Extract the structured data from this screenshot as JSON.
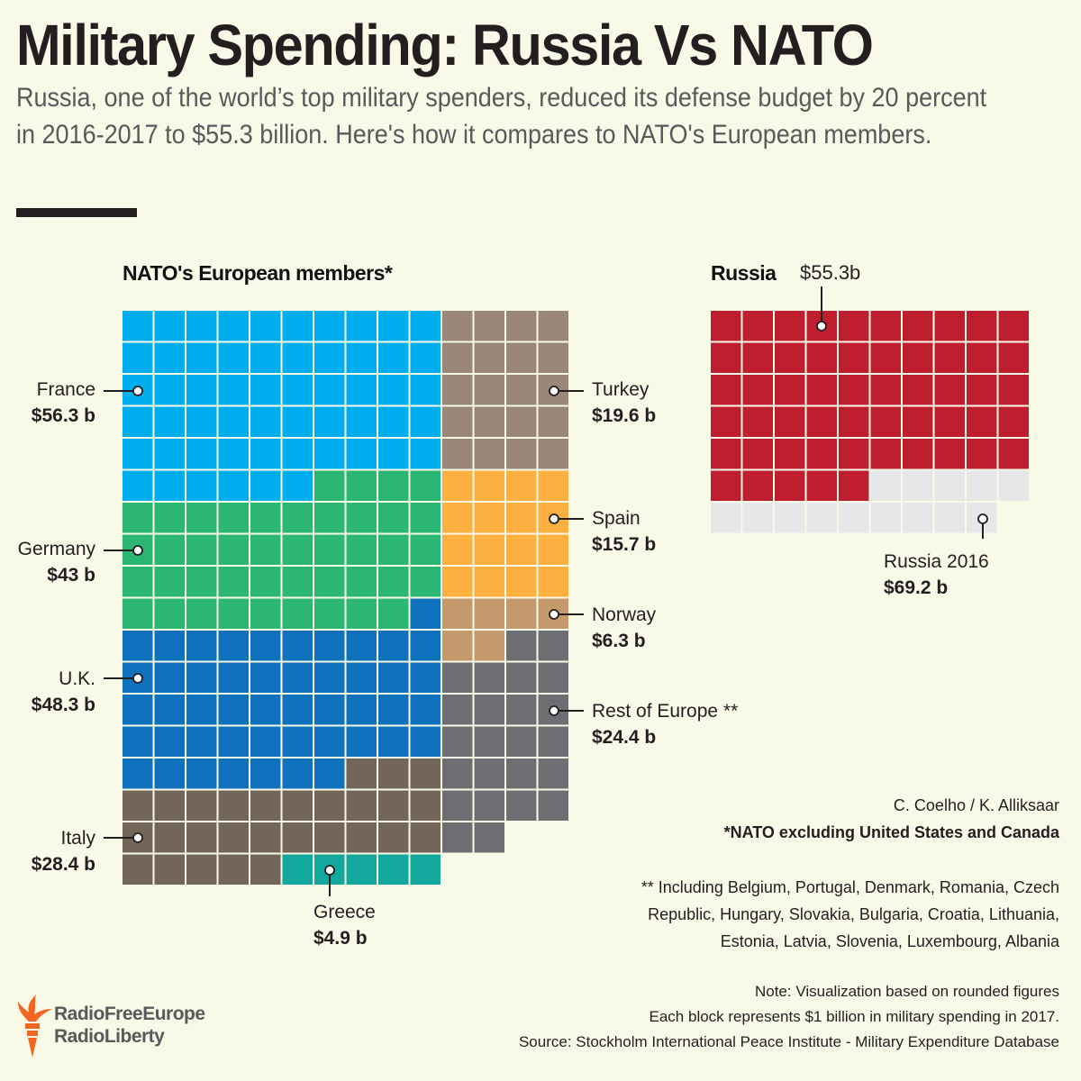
{
  "header": {
    "title": "Military Spending: Russia Vs NATO",
    "subtitle": "Russia, one of the world’s top military spenders, reduced its defense budget by 20 percent in 2016-2017 to $55.3 billion. Here's how it compares to NATO's European members."
  },
  "chart_data": [
    {
      "type": "waffle",
      "title": "NATO's European members*",
      "unit": "Each block represents $1 billion",
      "series": [
        {
          "name": "France",
          "value_label": "$56.3 b",
          "value": 56.3,
          "blocks": 56,
          "color": "#00aeef"
        },
        {
          "name": "Germany",
          "value_label": "$43 b",
          "value": 43,
          "blocks": 43,
          "color": "#2bb673"
        },
        {
          "name": "U.K.",
          "value_label": "$48.3 b",
          "value": 48.3,
          "blocks": 48,
          "color": "#1072bd"
        },
        {
          "name": "Italy",
          "value_label": "$28.4 b",
          "value": 28.4,
          "blocks": 28,
          "color": "#736658"
        },
        {
          "name": "Greece",
          "value_label": "$4.9 b",
          "value": 4.9,
          "blocks": 5,
          "color": "#13a89e"
        },
        {
          "name": "Turkey",
          "value_label": "$19.6 b",
          "value": 19.6,
          "blocks": 20,
          "color": "#9b877a"
        },
        {
          "name": "Spain",
          "value_label": "$15.7 b",
          "value": 15.7,
          "blocks": 16,
          "color": "#fbb040"
        },
        {
          "name": "Norway",
          "value_label": "$6.3 b",
          "value": 6.3,
          "blocks": 6,
          "color": "#c49a6c"
        },
        {
          "name": "Rest of Europe **",
          "value_label": "$24.4 b",
          "value": 24.4,
          "blocks": 24,
          "color": "#6d6e71"
        }
      ]
    },
    {
      "type": "waffle",
      "title": "Russia",
      "series": [
        {
          "name": "Russia 2017",
          "value_label": "$55.3b",
          "value": 55.3,
          "blocks": 55,
          "color": "#be1e2d"
        },
        {
          "name": "Russia 2016",
          "value_label": "$69.2 b",
          "value": 69.2,
          "blocks": 69,
          "color": "#e6e7e8"
        }
      ]
    }
  ],
  "credits": {
    "authors": "C. Coelho / K.  Alliksaar",
    "footnote1": "*NATO excluding United States and Canada",
    "footnote2_lines": [
      "** Including Belgium, Portugal, Denmark, Romania, Czech",
      "Republic, Hungary, Slovakia, Bulgaria, Croatia, Lithuania,",
      "Estonia, Latvia, Slovenia, Luxembourg, Albania"
    ],
    "note_lines": [
      "Note: Visualization based on rounded figures",
      "Each block represents $1 billion in military spending in 2017.",
      "Source: Stockholm International Peace Institute - Military Expenditure Database"
    ]
  },
  "logo": {
    "line1": "RadioFreeEurope",
    "line2": "RadioLiberty",
    "color": "#f26522"
  }
}
